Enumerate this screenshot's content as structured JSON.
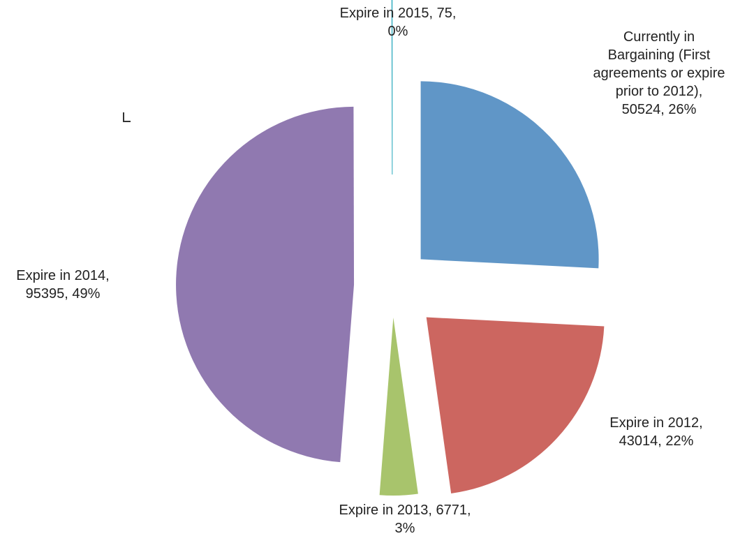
{
  "chart_data": {
    "type": "pie",
    "exploded": true,
    "start_angle_deg": 0,
    "direction": "clockwise",
    "slices": [
      {
        "label": "Currently in Bargaining (First agreements or expire prior to 2012)",
        "value": 50524,
        "percent": "26%",
        "color": "#6096C7",
        "data_label": "Currently in\nBargaining (First\nagreements or expire\nprior to 2012),\n50524, 26%"
      },
      {
        "label": "Expire in 2012",
        "value": 43014,
        "percent": "22%",
        "color": "#CC6660",
        "data_label": "Expire in 2012,\n43014, 22%"
      },
      {
        "label": "Expire in 2013",
        "value": 6771,
        "percent": "3%",
        "color": "#A8C46C",
        "data_label": "Expire in 2013, 6771,\n3%"
      },
      {
        "label": "Expire in 2014",
        "value": 95395,
        "percent": "49%",
        "color": "#9079B0",
        "data_label": "Expire in 2014,\n95395, 49%"
      },
      {
        "label": "Expire in 2015",
        "value": 75,
        "percent": "0%",
        "color": "#4FB8C9",
        "data_label": "Expire in 2015, 75,\n0%"
      }
    ]
  }
}
